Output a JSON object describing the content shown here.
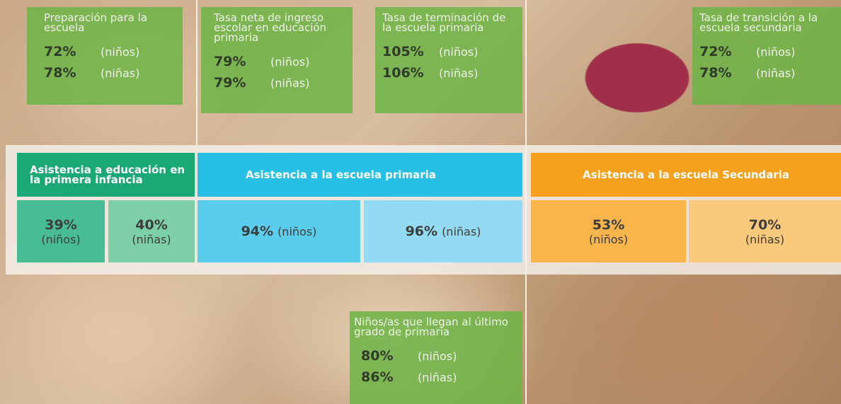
{
  "boxes": [
    {
      "title": "Preparación para la escuela",
      "rows": [
        [
          "72%",
          "(niños)"
        ],
        [
          "78%",
          "(niñas)"
        ]
      ]
    },
    {
      "title": "Tasa neta de ingreso escolar en educación primaria",
      "rows": [
        [
          "79%",
          "(niños)"
        ],
        [
          "79%",
          "(niñas)"
        ]
      ]
    },
    {
      "title": "Tasa de terminación de la escuela primaria",
      "rows": [
        [
          "105%",
          "(niños)"
        ],
        [
          "106%",
          "(niñas)"
        ]
      ]
    },
    {
      "title": "Tasa de transición a la escuela secundaria",
      "rows": [
        [
          "72%",
          "(niños)"
        ],
        [
          "78%",
          "(niñas)"
        ]
      ]
    },
    {
      "title": "Niños/as que llegan al último grado de primaria",
      "rows": [
        [
          "80%",
          "(niños)"
        ],
        [
          "86%",
          "(niñas)"
        ]
      ]
    }
  ],
  "attendance": [
    {
      "header": "Asistencia a educación en la primera infancia",
      "cells": [
        [
          "39%",
          "(niños)"
        ],
        [
          "40%",
          "(niñas)"
        ]
      ]
    },
    {
      "header": "Asistencia a la escuela primaria",
      "cells": [
        [
          "94%",
          "(niños)"
        ],
        [
          "96%",
          "(niñas)"
        ]
      ]
    },
    {
      "header": "Asistencia a la escuela Secundaria",
      "cells": [
        [
          "53%",
          "(niños)"
        ],
        [
          "70%",
          "(niñas)"
        ]
      ]
    }
  ]
}
